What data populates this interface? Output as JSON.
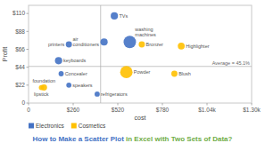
{
  "chart_data": {
    "type": "scatter",
    "title": [
      {
        "text": "How to Make a Scatter Plot",
        "color": "#4472C4"
      },
      {
        "text": " in Excel with Two Sets of Data?",
        "color": "#70AD47"
      }
    ],
    "xlabel": "cost",
    "ylabel": "Profit",
    "series": [
      {
        "name": "Electronics",
        "color": "#4472C4",
        "x": [
          500,
          590,
          440,
          235,
          175,
          190,
          235,
          400
        ],
        "values": [
          107,
          75,
          75,
          72,
          52,
          36,
          22,
          11
        ],
        "sizes": [
          55,
          160,
          55,
          40,
          55,
          28,
          28,
          28
        ],
        "labels": [
          "TVs",
          "washing\nmachines",
          "air\nconditioners",
          "printers",
          "keyboards",
          "Concealer",
          "speakers",
          "refrigerators"
        ]
      },
      {
        "name": "Cosmetics",
        "color": "#FFC000",
        "x": [
          660,
          890,
          570,
          850,
          90,
          75
        ],
        "values": [
          72,
          70,
          38,
          36,
          19,
          19
        ],
        "sizes": [
          40,
          50,
          160,
          40,
          40,
          28
        ],
        "labels": [
          "Bronzer",
          "Highlighter",
          "Powder",
          "Blush",
          "foundation",
          "lipstick"
        ]
      }
    ],
    "ref_lines": [
      {
        "axis": "x",
        "value": 420
      },
      {
        "axis": "y",
        "value": 45,
        "label": "Average = 45.1%"
      }
    ],
    "xlim": [
      0,
      1300
    ],
    "ylim": [
      0,
      120
    ],
    "xticks": [
      0,
      {
        "value": 260,
        "label": "$260"
      },
      {
        "value": 520,
        "label": "$520"
      },
      {
        "value": 780,
        "label": "$780"
      },
      {
        "value": 1040,
        "label": "$1.04k"
      },
      {
        "value": 1300,
        "label": "$1.30k"
      }
    ],
    "yticks": [
      0,
      {
        "value": 22,
        "label": "$22"
      },
      {
        "value": 44,
        "label": "$44"
      },
      {
        "value": 66,
        "label": "$66"
      },
      {
        "value": 88,
        "label": "$88"
      },
      {
        "value": 110,
        "label": "$110"
      }
    ],
    "grid": false,
    "legend": "bottom left"
  }
}
